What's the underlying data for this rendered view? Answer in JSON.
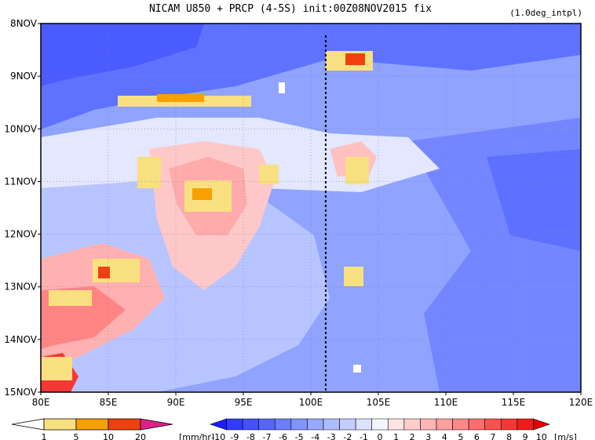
{
  "title": "NICAM  U850 + PRCP (4-5S) init:00Z08NOV2015 fix",
  "subtitle": "(1.0deg_intpl)",
  "chart_data": {
    "type": "heatmap",
    "title": "NICAM  U850 + PRCP (4-5S) init:00Z08NOV2015 fix",
    "subtitle": "(1.0deg_intpl)",
    "x_ticks": [
      "80E",
      "85E",
      "90E",
      "95E",
      "100E",
      "105E",
      "110E",
      "115E",
      "120E"
    ],
    "x_range": [
      80,
      120
    ],
    "y_ticks": [
      "8NOV",
      "9NOV",
      "10NOV",
      "11NOV",
      "12NOV",
      "13NOV",
      "14NOV",
      "15NOV"
    ],
    "y_range": [
      "8NOV",
      "15NOV"
    ],
    "grid": true,
    "reference_line_x": 101.1,
    "shaded_field": "U850",
    "overlay_field": "PRCP",
    "u_colorbar": {
      "unit": "[m/s]",
      "labels": [
        "-10",
        "-9",
        "-8",
        "-7",
        "-6",
        "-5",
        "-4",
        "-3",
        "-2",
        "-1",
        "0",
        "1",
        "2",
        "3",
        "4",
        "5",
        "6",
        "7",
        "8",
        "9",
        "10"
      ],
      "colors": [
        "#1c1cff",
        "#2f3cff",
        "#4350ff",
        "#5466ff",
        "#6a7eff",
        "#7f94ff",
        "#97a9ff",
        "#aebcff",
        "#c4cdff",
        "#dde3ff",
        "#f4f4ff",
        "#ffe3e3",
        "#ffcccc",
        "#ffb5b5",
        "#ff9f9f",
        "#ff8888",
        "#ff6d6d",
        "#ff5050",
        "#f83636",
        "#ef1c1c",
        "#e00000"
      ]
    },
    "prcp_colorbar": {
      "unit": "[mm/hr]",
      "labels": [
        "1",
        "5",
        "10",
        "20"
      ],
      "colors": [
        "#ffffff",
        "#f8e080",
        "#f8a000",
        "#f04010",
        "#e0208a"
      ]
    }
  }
}
